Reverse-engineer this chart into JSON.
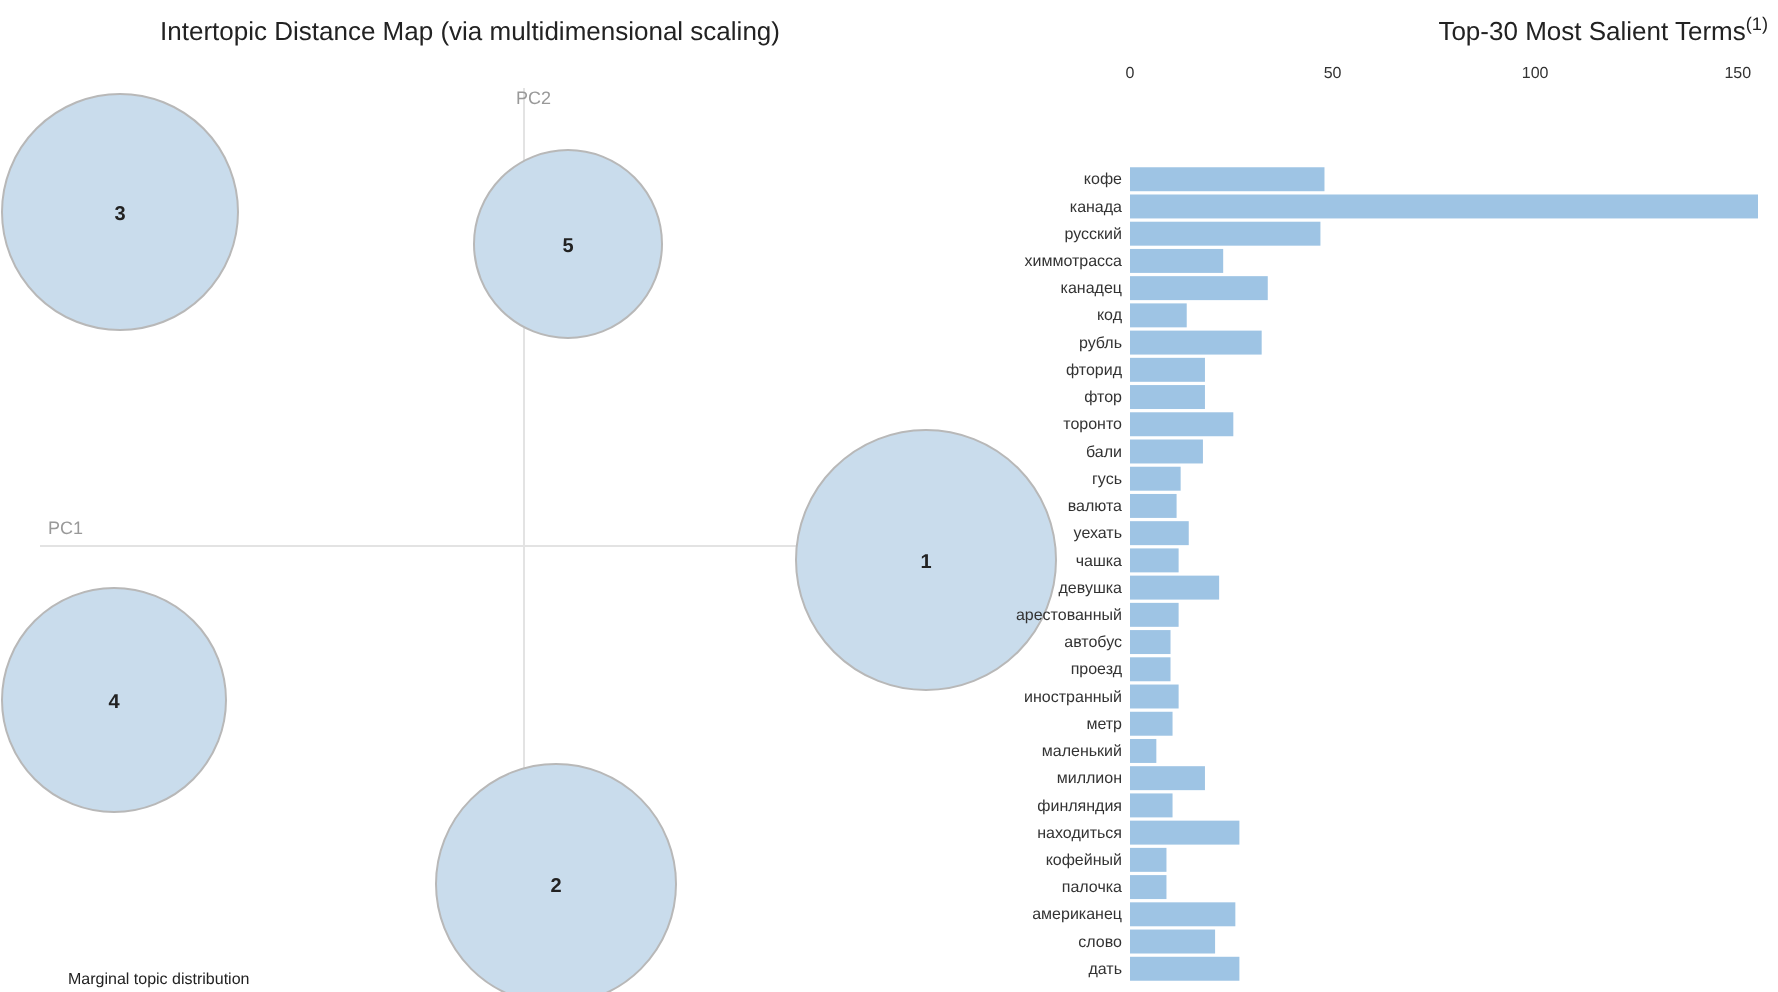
{
  "chart_data": [
    {
      "type": "other",
      "title": "Intertopic Distance Map (via multidimensional scaling)",
      "xlabel": "PC1",
      "ylabel": "PC2",
      "annotations": [
        "1",
        "2",
        "3",
        "4",
        "5",
        "Marginal topic distribution"
      ]
    },
    {
      "type": "bar",
      "orientation": "horizontal",
      "title": "Top-30 Most Salient Terms$^{(1)}$",
      "color": "#9ec4e4",
      "xlim": [
        0,
        155
      ],
      "xticks": [
        0,
        50,
        100,
        150
      ],
      "categories": [
        "кофе",
        "канада",
        "русский",
        "химмотрасса",
        "канадец",
        "код",
        "рубль",
        "фторид",
        "фтор",
        "торонто",
        "бали",
        "гусь",
        "валюта",
        "уехать",
        "чашка",
        "девушка",
        "арестованный",
        "автобус",
        "проезд",
        "иностранный",
        "метр",
        "маленький",
        "миллион",
        "финляндия",
        "находиться",
        "кофейный",
        "палочка",
        "американец",
        "слово",
        "дать"
      ],
      "values": [
        48,
        155,
        47,
        23,
        34,
        14,
        32.5,
        18.5,
        18.5,
        25.5,
        18,
        12.5,
        11.5,
        14.5,
        12,
        22,
        12,
        10,
        10,
        12,
        10.5,
        6.5,
        18.5,
        10.5,
        27,
        9,
        9,
        26,
        21,
        27
      ]
    }
  ]
}
